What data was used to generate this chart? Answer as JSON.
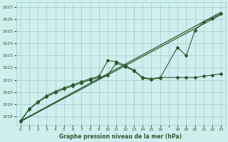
{
  "title": "Graphe pression niveau de la mer (hPa)",
  "bg_color": "#d0eeee",
  "grid_color": "#99cccc",
  "line_color": "#2d5a2d",
  "ylim": [
    1017.3,
    1027.4
  ],
  "xlim": [
    -0.5,
    23.5
  ],
  "yticks": [
    1018,
    1019,
    1020,
    1021,
    1022,
    1023,
    1024,
    1025,
    1026,
    1027
  ],
  "xtick_labels": [
    "0",
    "1",
    "2",
    "3",
    "4",
    "5",
    "6",
    "7",
    "8",
    "9",
    "10",
    "11",
    "12",
    "13",
    "14",
    "15",
    "16",
    "",
    "18",
    "19",
    "20",
    "21",
    "22",
    "23"
  ],
  "xtick_pos": [
    0,
    1,
    2,
    3,
    4,
    5,
    6,
    7,
    8,
    9,
    10,
    11,
    12,
    13,
    14,
    15,
    16,
    17,
    18,
    19,
    20,
    21,
    22,
    23
  ],
  "trend1_x": [
    0,
    23
  ],
  "trend1_y": [
    1017.6,
    1026.6
  ],
  "trend2_x": [
    0,
    23
  ],
  "trend2_y": [
    1017.55,
    1026.4
  ],
  "line1_x": [
    0,
    1,
    2,
    3,
    4,
    5,
    6,
    7,
    8,
    9,
    10,
    11,
    12,
    13,
    14,
    15,
    16,
    18,
    19,
    20,
    21,
    22,
    23
  ],
  "line1_y": [
    1017.6,
    1018.6,
    1019.2,
    1019.7,
    1020.05,
    1020.35,
    1020.6,
    1020.85,
    1021.1,
    1021.3,
    1022.6,
    1022.5,
    1022.2,
    1021.8,
    1021.2,
    1021.1,
    1021.2,
    1021.2,
    1021.2,
    1021.2,
    1021.3,
    1021.4,
    1021.5
  ],
  "line2_x": [
    0,
    1,
    2,
    3,
    4,
    5,
    6,
    7,
    8,
    9,
    10,
    11,
    12,
    13,
    14,
    15,
    16,
    18,
    19,
    20,
    21,
    22,
    23
  ],
  "line2_y": [
    1017.55,
    1018.55,
    1019.15,
    1019.6,
    1019.95,
    1020.25,
    1020.5,
    1020.75,
    1021.0,
    1021.2,
    1021.4,
    1022.4,
    1022.1,
    1021.75,
    1021.15,
    1021.05,
    1021.15,
    1023.7,
    1023.0,
    1025.1,
    1025.8,
    1026.1,
    1026.5
  ]
}
